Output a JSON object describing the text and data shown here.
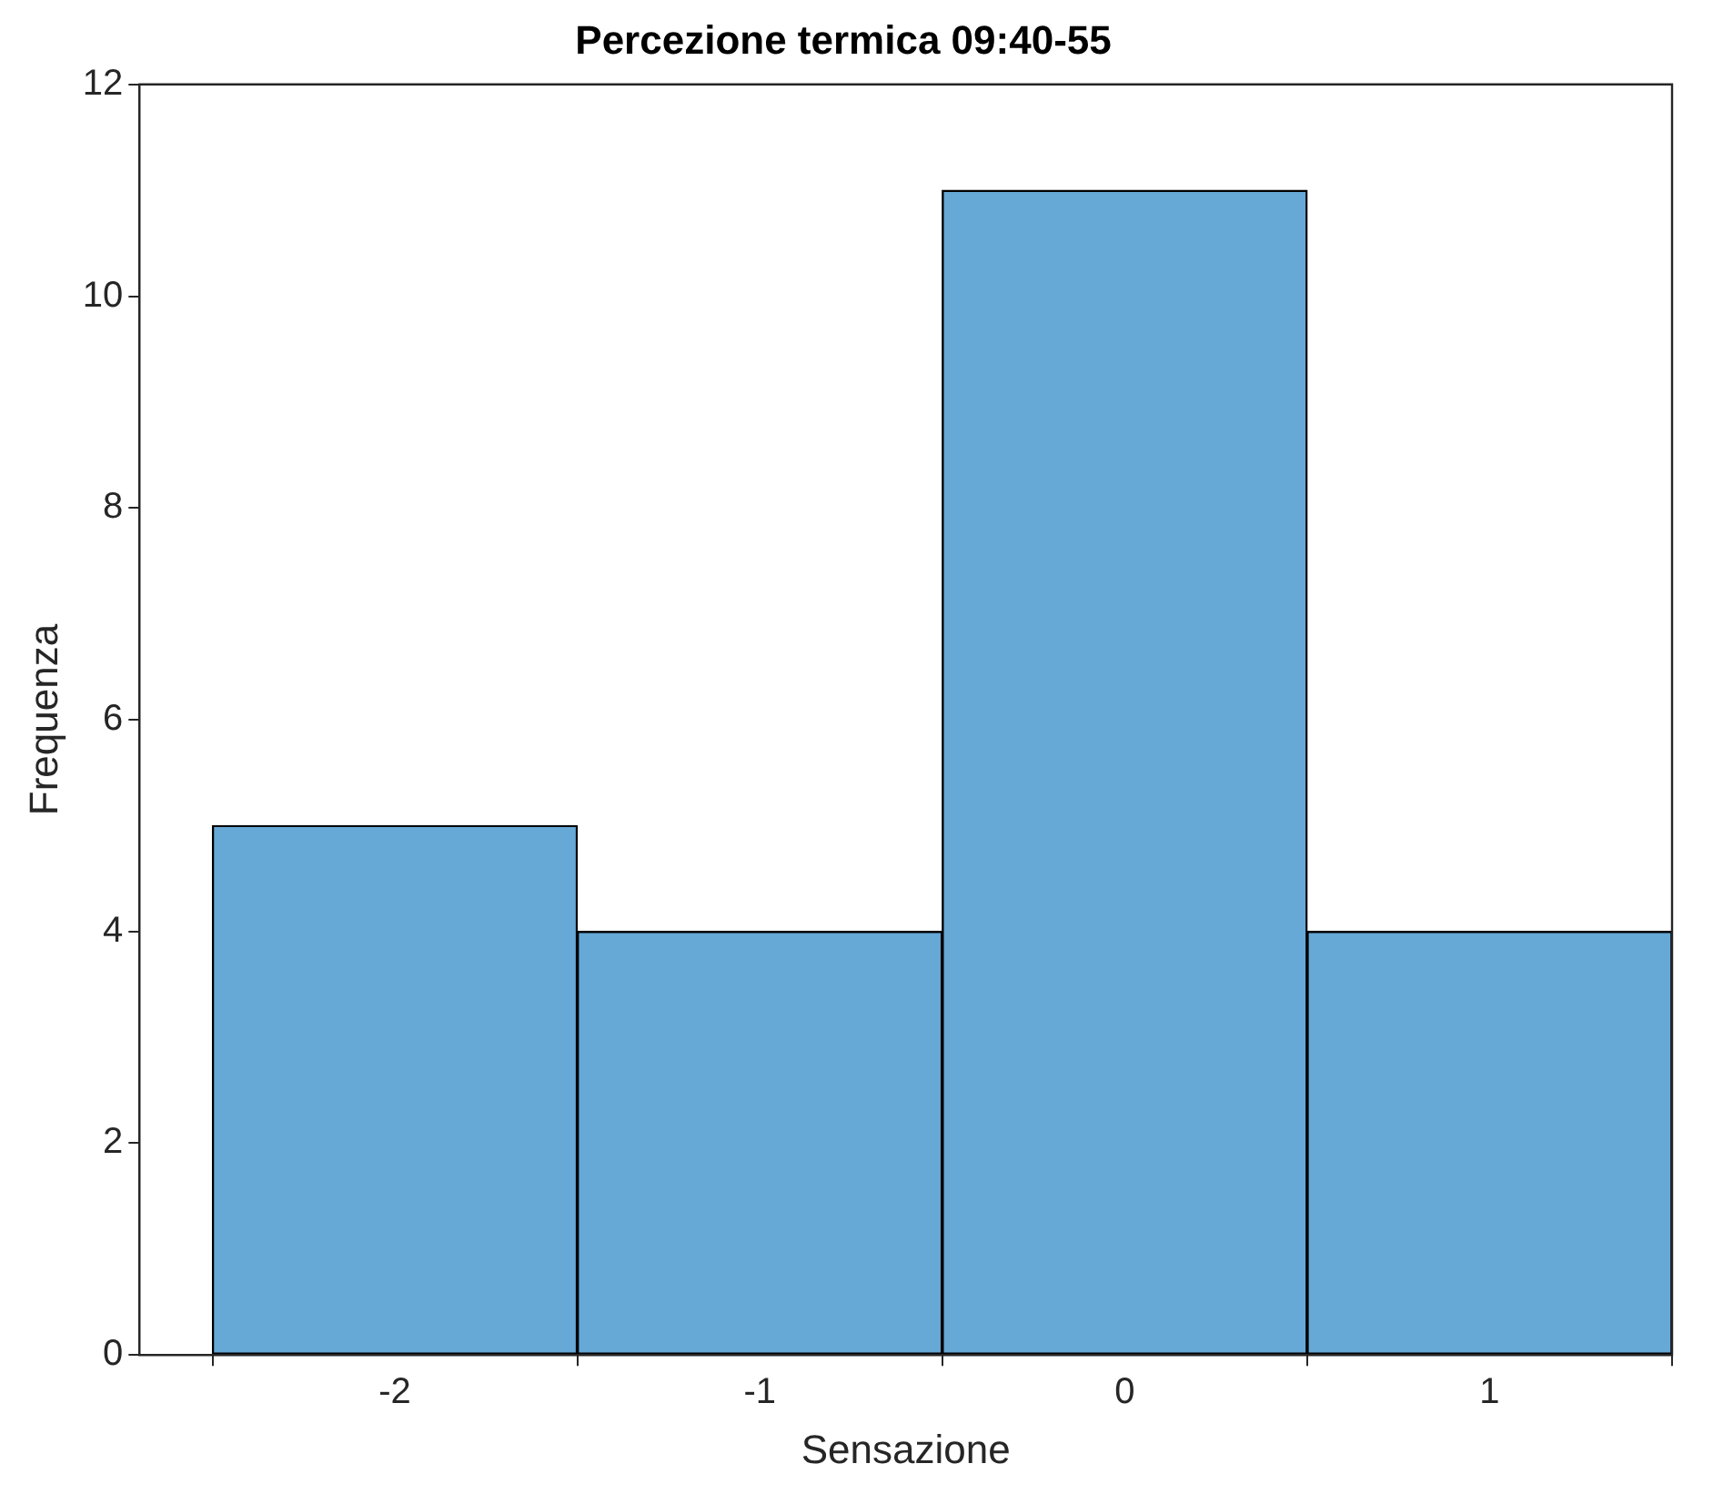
{
  "chart_data": {
    "type": "histogram",
    "title": "Percezione termica 09:40-55",
    "xlabel": "Sensazione",
    "ylabel": "Frequenza",
    "bins": [
      -2.5,
      -1.5,
      -0.5,
      0.5,
      1.5
    ],
    "values": [
      5,
      4,
      11,
      4
    ],
    "color": "#66a8d6",
    "xlim": [
      -2.7,
      1.5
    ],
    "xticks": [
      -2,
      -1,
      0,
      1
    ],
    "ylim": [
      0,
      12
    ],
    "yticks": [
      0,
      2,
      4,
      6,
      8,
      10,
      12
    ],
    "grid": false,
    "legend": false
  }
}
